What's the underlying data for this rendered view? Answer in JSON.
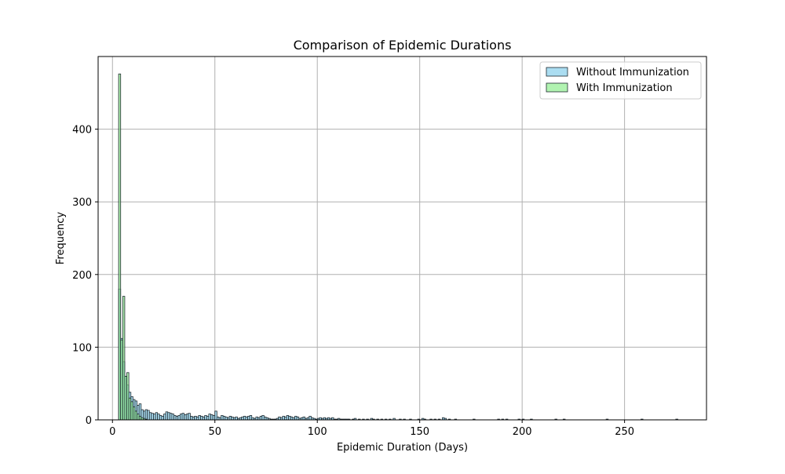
{
  "chart_data": {
    "type": "histogram",
    "title": "Comparison of Epidemic Durations",
    "xlabel": "Epidemic Duration (Days)",
    "ylabel": "Frequency",
    "xlim": [
      -7,
      290
    ],
    "ylim": [
      0,
      500
    ],
    "xticks": [
      0,
      50,
      100,
      150,
      200,
      250
    ],
    "yticks": [
      0,
      100,
      200,
      300,
      400
    ],
    "grid": true,
    "legend_position": "top-right",
    "bin_width": 1,
    "series": [
      {
        "name": "Without Immunization",
        "color": "#87ceeb",
        "edge_color": "#1f2a30",
        "opacity": 0.7,
        "bins": [
          [
            3,
            180
          ],
          [
            4,
            112
          ],
          [
            5,
            80
          ],
          [
            6,
            60
          ],
          [
            7,
            48
          ],
          [
            8,
            38
          ],
          [
            9,
            32
          ],
          [
            10,
            28
          ],
          [
            11,
            26
          ],
          [
            12,
            20
          ],
          [
            13,
            22
          ],
          [
            14,
            14
          ],
          [
            15,
            12
          ],
          [
            16,
            14
          ],
          [
            17,
            13
          ],
          [
            18,
            10
          ],
          [
            19,
            9
          ],
          [
            20,
            8
          ],
          [
            21,
            10
          ],
          [
            22,
            8
          ],
          [
            23,
            6
          ],
          [
            24,
            5
          ],
          [
            25,
            8
          ],
          [
            26,
            11
          ],
          [
            27,
            10
          ],
          [
            28,
            9
          ],
          [
            29,
            8
          ],
          [
            30,
            6
          ],
          [
            31,
            5
          ],
          [
            32,
            6
          ],
          [
            33,
            8
          ],
          [
            34,
            9
          ],
          [
            35,
            7
          ],
          [
            36,
            8
          ],
          [
            37,
            9
          ],
          [
            38,
            5
          ],
          [
            39,
            4
          ],
          [
            40,
            5
          ],
          [
            41,
            4
          ],
          [
            42,
            6
          ],
          [
            43,
            5
          ],
          [
            44,
            4
          ],
          [
            45,
            6
          ],
          [
            46,
            5
          ],
          [
            47,
            8
          ],
          [
            48,
            7
          ],
          [
            49,
            6
          ],
          [
            50,
            12
          ],
          [
            51,
            4
          ],
          [
            52,
            3
          ],
          [
            53,
            6
          ],
          [
            54,
            5
          ],
          [
            55,
            4
          ],
          [
            56,
            3
          ],
          [
            57,
            5
          ],
          [
            58,
            4
          ],
          [
            59,
            3
          ],
          [
            60,
            4
          ],
          [
            61,
            2
          ],
          [
            62,
            3
          ],
          [
            63,
            4
          ],
          [
            64,
            5
          ],
          [
            65,
            4
          ],
          [
            66,
            5
          ],
          [
            67,
            6
          ],
          [
            68,
            3
          ],
          [
            69,
            2
          ],
          [
            70,
            4
          ],
          [
            71,
            3
          ],
          [
            72,
            5
          ],
          [
            73,
            6
          ],
          [
            74,
            4
          ],
          [
            75,
            3
          ],
          [
            76,
            2
          ],
          [
            77,
            1
          ],
          [
            78,
            1
          ],
          [
            79,
            1
          ],
          [
            80,
            2
          ],
          [
            81,
            4
          ],
          [
            82,
            3
          ],
          [
            83,
            5
          ],
          [
            84,
            4
          ],
          [
            85,
            6
          ],
          [
            86,
            5
          ],
          [
            87,
            4
          ],
          [
            88,
            3
          ],
          [
            89,
            5
          ],
          [
            90,
            4
          ],
          [
            91,
            2
          ],
          [
            92,
            3
          ],
          [
            93,
            4
          ],
          [
            94,
            2
          ],
          [
            95,
            3
          ],
          [
            96,
            5
          ],
          [
            97,
            3
          ],
          [
            98,
            2
          ],
          [
            99,
            1
          ],
          [
            100,
            2
          ],
          [
            101,
            3
          ],
          [
            102,
            2
          ],
          [
            103,
            3
          ],
          [
            104,
            2
          ],
          [
            105,
            3
          ],
          [
            106,
            2
          ],
          [
            107,
            3
          ],
          [
            108,
            1
          ],
          [
            109,
            1
          ],
          [
            110,
            2
          ],
          [
            111,
            1
          ],
          [
            112,
            1
          ],
          [
            113,
            1
          ],
          [
            114,
            1
          ],
          [
            115,
            1
          ],
          [
            117,
            1
          ],
          [
            118,
            2
          ],
          [
            120,
            1
          ],
          [
            122,
            1
          ],
          [
            124,
            1
          ],
          [
            126,
            2
          ],
          [
            127,
            1
          ],
          [
            129,
            1
          ],
          [
            131,
            1
          ],
          [
            133,
            1
          ],
          [
            135,
            1
          ],
          [
            137,
            2
          ],
          [
            140,
            1
          ],
          [
            142,
            1
          ],
          [
            145,
            1
          ],
          [
            149,
            1
          ],
          [
            151,
            2
          ],
          [
            152,
            1
          ],
          [
            155,
            1
          ],
          [
            157,
            1
          ],
          [
            159,
            1
          ],
          [
            161,
            3
          ],
          [
            162,
            2
          ],
          [
            164,
            1
          ],
          [
            167,
            1
          ],
          [
            176,
            1
          ],
          [
            188,
            1
          ],
          [
            190,
            1
          ],
          [
            192,
            1
          ],
          [
            198,
            1
          ],
          [
            200,
            1
          ],
          [
            204,
            1
          ],
          [
            216,
            1
          ],
          [
            220,
            1
          ],
          [
            241,
            1
          ],
          [
            258,
            1
          ],
          [
            275,
            1
          ]
        ]
      },
      {
        "name": "With Immunization",
        "color": "#90ee90",
        "edge_color": "#1f2a30",
        "opacity": 0.7,
        "bins": [
          [
            3,
            476
          ],
          [
            4,
            110
          ],
          [
            5,
            170
          ],
          [
            6,
            60
          ],
          [
            7,
            65
          ],
          [
            8,
            30
          ],
          [
            9,
            25
          ],
          [
            10,
            18
          ],
          [
            11,
            12
          ],
          [
            12,
            8
          ],
          [
            13,
            5
          ],
          [
            14,
            3
          ],
          [
            15,
            2
          ],
          [
            16,
            1
          ]
        ]
      }
    ]
  }
}
